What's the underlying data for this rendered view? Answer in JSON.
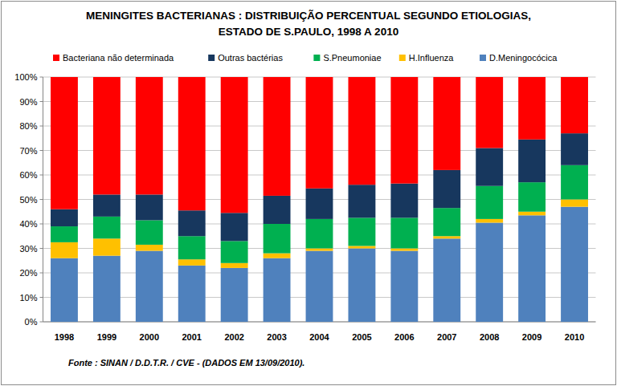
{
  "chart_data": {
    "type": "bar",
    "stacked": true,
    "title": "MENINGITES BACTERIANAS  : DISTRIBUIÇÃO PERCENTUAL  SEGUNDO ETIOLOGIAS,",
    "subtitle": "ESTADO DE S.PAULO, 1998 A 2010",
    "annotations": [
      "Fonte : SINAN / D.D.T.R. / CVE - (DADOS EM  13/09/2010)."
    ],
    "categories": [
      "1998",
      "1999",
      "2000",
      "2001",
      "2002",
      "2003",
      "2004",
      "2005",
      "2006",
      "2007",
      "2008",
      "2009",
      "2010"
    ],
    "series": [
      {
        "name": "D.Meningocócica",
        "color": "#4f81bd",
        "values": [
          26,
          27,
          29,
          23,
          22,
          26,
          29,
          30,
          29,
          34,
          40.5,
          43.5,
          47
        ]
      },
      {
        "name": "H.Influenza",
        "color": "#ffc000",
        "values": [
          6.5,
          7,
          2.5,
          2.5,
          2,
          2,
          1,
          1,
          1,
          1,
          1.5,
          1.5,
          3
        ]
      },
      {
        "name": "S.Pneumoniae",
        "color": "#00b050",
        "values": [
          6.5,
          9,
          10,
          9.5,
          9,
          12,
          12,
          11.5,
          12.5,
          11.5,
          13.5,
          12,
          14
        ]
      },
      {
        "name": "Outras bactérias",
        "color": "#17375e",
        "values": [
          7,
          9,
          10.5,
          10.5,
          11.5,
          11.5,
          12.5,
          13.5,
          14,
          15.5,
          15.5,
          17.5,
          13
        ]
      },
      {
        "name": "Bacteriana não determinada",
        "color": "#ff0000",
        "values": [
          54,
          48,
          48,
          54.5,
          55.5,
          48.5,
          45.5,
          44,
          43.5,
          38,
          29,
          25.5,
          23
        ]
      }
    ],
    "ylim": [
      0,
      100
    ],
    "yticks": [
      {
        "value": 0,
        "label": "0%"
      },
      {
        "value": 10,
        "label": "10%"
      },
      {
        "value": 20,
        "label": "20%"
      },
      {
        "value": 30,
        "label": "30%"
      },
      {
        "value": 40,
        "label": "40%"
      },
      {
        "value": 50,
        "label": "50%"
      },
      {
        "value": 60,
        "label": "60%"
      },
      {
        "value": 70,
        "label": "70%"
      },
      {
        "value": 80,
        "label": "80%"
      },
      {
        "value": 90,
        "label": "90%"
      },
      {
        "value": 100,
        "label": "100%"
      }
    ],
    "grid": true,
    "legend": "top"
  }
}
